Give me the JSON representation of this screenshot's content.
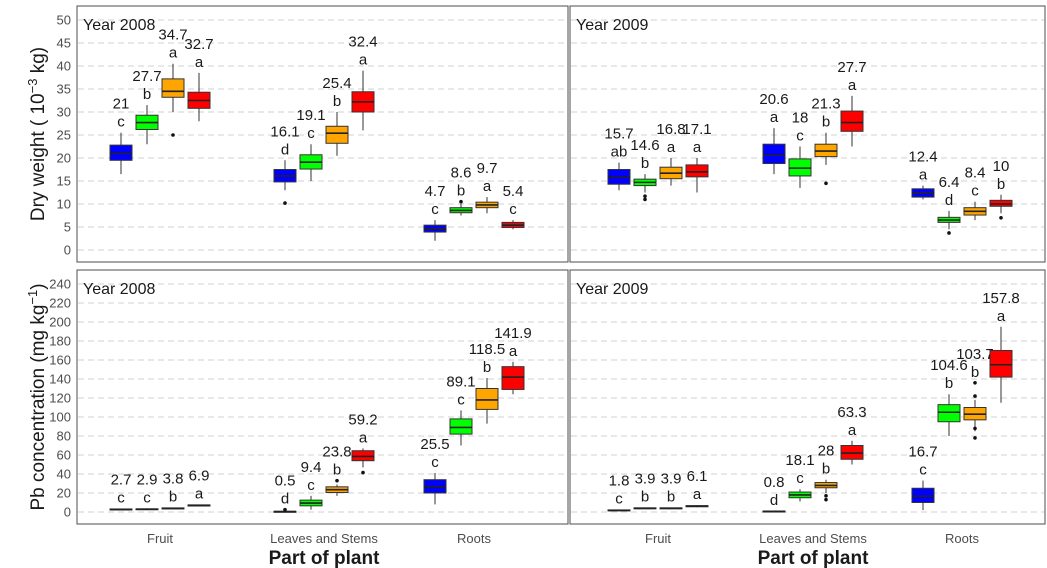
{
  "colors": {
    "blue": "#0000ff",
    "green": "#00ff00",
    "orange": "#ffa500",
    "red": "#ff0000",
    "grid": "#d0d0d0",
    "panel_border": "#4d4d4d"
  },
  "chart_data": {
    "type": "box",
    "xlabel": "Part of plant",
    "categories": [
      "Fruit",
      "Leaves and Stems",
      "Roots"
    ],
    "series_colors": [
      "blue",
      "green",
      "orange",
      "red"
    ],
    "rows": [
      {
        "ylabel_main": "Dry weight (",
        "ylabel_exp_base": "10",
        "ylabel_sup": "−3",
        "ylabel_unit": " kg)",
        "ylim": [
          0,
          50
        ],
        "yticks": [
          "0",
          "5",
          "10",
          "15",
          "20",
          "25",
          "30",
          "35",
          "40",
          "45",
          "50"
        ],
        "panels": [
          {
            "title": "Year 2008",
            "groups": [
              {
                "category": "Fruit",
                "boxes": [
                  {
                    "q1": 19.5,
                    "median": 21,
                    "q3": 22.8,
                    "wl": 16.5,
                    "wh": 25.5,
                    "outliers": [],
                    "mean_label": "21",
                    "letter": "c"
                  },
                  {
                    "q1": 26.2,
                    "median": 27.7,
                    "q3": 29.3,
                    "wl": 23.0,
                    "wh": 31.5,
                    "outliers": [],
                    "mean_label": "27.7",
                    "letter": "b"
                  },
                  {
                    "q1": 33.2,
                    "median": 34.5,
                    "q3": 37.2,
                    "wl": 30.0,
                    "wh": 40.5,
                    "outliers": [
                      25.0
                    ],
                    "mean_label": "34.7",
                    "letter": "a"
                  },
                  {
                    "q1": 30.8,
                    "median": 32.5,
                    "q3": 34.3,
                    "wl": 28.0,
                    "wh": 38.5,
                    "outliers": [],
                    "mean_label": "32.7",
                    "letter": "a"
                  }
                ]
              },
              {
                "category": "Leaves and Stems",
                "boxes": [
                  {
                    "q1": 14.8,
                    "median": 16.1,
                    "q3": 17.5,
                    "wl": 13.0,
                    "wh": 19.5,
                    "outliers": [
                      10.2
                    ],
                    "mean_label": "16.1",
                    "letter": "d"
                  },
                  {
                    "q1": 17.6,
                    "median": 19.1,
                    "q3": 20.7,
                    "wl": 15.0,
                    "wh": 23.0,
                    "outliers": [],
                    "mean_label": "19.1",
                    "letter": "c"
                  },
                  {
                    "q1": 23.2,
                    "median": 25.4,
                    "q3": 26.9,
                    "wl": 20.5,
                    "wh": 30.0,
                    "outliers": [],
                    "mean_label": "25.4",
                    "letter": "b"
                  },
                  {
                    "q1": 30.0,
                    "median": 32.2,
                    "q3": 34.4,
                    "wl": 26.0,
                    "wh": 39.0,
                    "outliers": [],
                    "mean_label": "32.4",
                    "letter": "a"
                  }
                ]
              },
              {
                "category": "Roots",
                "boxes": [
                  {
                    "q1": 3.9,
                    "median": 4.6,
                    "q3": 5.4,
                    "wl": 2.0,
                    "wh": 6.5,
                    "outliers": [],
                    "mean_label": "4.7",
                    "letter": "c"
                  },
                  {
                    "q1": 8.1,
                    "median": 8.6,
                    "q3": 9.2,
                    "wl": 7.5,
                    "wh": 10.0,
                    "outliers": [
                      10.5
                    ],
                    "mean_label": "8.6",
                    "letter": "b"
                  },
                  {
                    "q1": 9.2,
                    "median": 9.8,
                    "q3": 10.4,
                    "wl": 8.0,
                    "wh": 11.5,
                    "outliers": [],
                    "mean_label": "9.7",
                    "letter": "a"
                  },
                  {
                    "q1": 4.9,
                    "median": 5.4,
                    "q3": 6.0,
                    "wl": 4.5,
                    "wh": 6.5,
                    "outliers": [],
                    "mean_label": "5.4",
                    "letter": "c"
                  }
                ]
              }
            ]
          },
          {
            "title": "Year 2009",
            "groups": [
              {
                "category": "Fruit",
                "boxes": [
                  {
                    "q1": 14.3,
                    "median": 15.8,
                    "q3": 17.5,
                    "wl": 13.0,
                    "wh": 19.0,
                    "outliers": [],
                    "mean_label": "15.7",
                    "letter": "ab"
                  },
                  {
                    "q1": 14.0,
                    "median": 14.7,
                    "q3": 15.4,
                    "wl": 12.5,
                    "wh": 16.5,
                    "outliers": [
                      11.7,
                      11.0
                    ],
                    "mean_label": "14.6",
                    "letter": "b"
                  },
                  {
                    "q1": 15.5,
                    "median": 16.7,
                    "q3": 18.0,
                    "wl": 14.0,
                    "wh": 20.0,
                    "outliers": [],
                    "mean_label": "16.8",
                    "letter": "a"
                  },
                  {
                    "q1": 15.9,
                    "median": 17.0,
                    "q3": 18.5,
                    "wl": 12.5,
                    "wh": 20.0,
                    "outliers": [],
                    "mean_label": "17.1",
                    "letter": "a"
                  }
                ]
              },
              {
                "category": "Leaves and Stems",
                "boxes": [
                  {
                    "q1": 18.8,
                    "median": 20.6,
                    "q3": 23.0,
                    "wl": 16.5,
                    "wh": 26.5,
                    "outliers": [],
                    "mean_label": "20.6",
                    "letter": "a"
                  },
                  {
                    "q1": 16.1,
                    "median": 17.8,
                    "q3": 19.8,
                    "wl": 13.5,
                    "wh": 22.5,
                    "outliers": [],
                    "mean_label": "18",
                    "letter": "c"
                  },
                  {
                    "q1": 20.3,
                    "median": 21.5,
                    "q3": 23.0,
                    "wl": 18.5,
                    "wh": 25.5,
                    "outliers": [
                      14.5
                    ],
                    "mean_label": "21.3",
                    "letter": "b"
                  },
                  {
                    "q1": 25.8,
                    "median": 27.7,
                    "q3": 30.2,
                    "wl": 22.5,
                    "wh": 33.5,
                    "outliers": [],
                    "mean_label": "27.7",
                    "letter": "a"
                  }
                ]
              },
              {
                "category": "Roots",
                "boxes": [
                  {
                    "q1": 11.5,
                    "median": 12.4,
                    "q3": 13.3,
                    "wl": 11.0,
                    "wh": 14.0,
                    "outliers": [],
                    "mean_label": "12.4",
                    "letter": "a"
                  },
                  {
                    "q1": 6.0,
                    "median": 6.5,
                    "q3": 7.1,
                    "wl": 4.5,
                    "wh": 8.5,
                    "outliers": [
                      3.7
                    ],
                    "mean_label": "6.4",
                    "letter": "d"
                  },
                  {
                    "q1": 7.6,
                    "median": 8.4,
                    "q3": 9.2,
                    "wl": 6.5,
                    "wh": 10.5,
                    "outliers": [],
                    "mean_label": "8.4",
                    "letter": "c"
                  },
                  {
                    "q1": 9.5,
                    "median": 10.0,
                    "q3": 10.8,
                    "wl": 8.0,
                    "wh": 12.0,
                    "outliers": [
                      7.0
                    ],
                    "mean_label": "10",
                    "letter": "b"
                  }
                ]
              }
            ]
          }
        ]
      },
      {
        "ylabel_main": "Pb concentration (mg  kg",
        "ylabel_exp_base": "",
        "ylabel_sup": "−1",
        "ylabel_unit": ")",
        "ylim": [
          0,
          240
        ],
        "yticks": [
          "0",
          "20",
          "40",
          "60",
          "80",
          "100",
          "120",
          "140",
          "160",
          "180",
          "200",
          "220",
          "240"
        ],
        "panels": [
          {
            "title": "Year 2008",
            "groups": [
              {
                "category": "Fruit",
                "boxes": [
                  {
                    "q1": 2.2,
                    "median": 2.7,
                    "q3": 3.2,
                    "wl": 1.8,
                    "wh": 3.5,
                    "outliers": [],
                    "mean_label": "2.7",
                    "letter": "c"
                  },
                  {
                    "q1": 2.4,
                    "median": 2.9,
                    "q3": 3.4,
                    "wl": 2.0,
                    "wh": 3.8,
                    "outliers": [],
                    "mean_label": "2.9",
                    "letter": "c"
                  },
                  {
                    "q1": 3.3,
                    "median": 3.8,
                    "q3": 4.3,
                    "wl": 3.0,
                    "wh": 4.6,
                    "outliers": [],
                    "mean_label": "3.8",
                    "letter": "b"
                  },
                  {
                    "q1": 6.3,
                    "median": 6.9,
                    "q3": 7.5,
                    "wl": 6.0,
                    "wh": 7.8,
                    "outliers": [],
                    "mean_label": "6.9",
                    "letter": "a"
                  }
                ]
              },
              {
                "category": "Leaves and Stems",
                "boxes": [
                  {
                    "q1": 0.3,
                    "median": 0.5,
                    "q3": 0.7,
                    "wl": 0.1,
                    "wh": 0.9,
                    "outliers": [
                      2.5
                    ],
                    "mean_label": "0.5",
                    "letter": "d"
                  },
                  {
                    "q1": 6.5,
                    "median": 9.4,
                    "q3": 12.5,
                    "wl": 2.5,
                    "wh": 17.0,
                    "outliers": [],
                    "mean_label": "9.4",
                    "letter": "c"
                  },
                  {
                    "q1": 20.5,
                    "median": 23.5,
                    "q3": 26.5,
                    "wl": 17.0,
                    "wh": 29.0,
                    "outliers": [
                      33.0
                    ],
                    "mean_label": "23.8",
                    "letter": "b"
                  },
                  {
                    "q1": 54.0,
                    "median": 58.5,
                    "q3": 64.5,
                    "wl": 47.0,
                    "wh": 67.0,
                    "outliers": [
                      41.5
                    ],
                    "mean_label": "59.2",
                    "letter": "a"
                  }
                ]
              },
              {
                "category": "Roots",
                "boxes": [
                  {
                    "q1": 20.0,
                    "median": 26.5,
                    "q3": 34.0,
                    "wl": 8.0,
                    "wh": 41.0,
                    "outliers": [],
                    "mean_label": "25.5",
                    "letter": "c"
                  },
                  {
                    "q1": 82.0,
                    "median": 89.0,
                    "q3": 98.0,
                    "wl": 70.0,
                    "wh": 107.0,
                    "outliers": [],
                    "mean_label": "89.1",
                    "letter": "c"
                  },
                  {
                    "q1": 108.0,
                    "median": 118.0,
                    "q3": 130.0,
                    "wl": 93.0,
                    "wh": 141.0,
                    "outliers": [],
                    "mean_label": "118.5",
                    "letter": "b"
                  },
                  {
                    "q1": 129.0,
                    "median": 142.0,
                    "q3": 153.0,
                    "wl": 124.0,
                    "wh": 158.0,
                    "outliers": [],
                    "mean_label": "141.9",
                    "letter": "a"
                  }
                ]
              }
            ]
          },
          {
            "title": "Year 2009",
            "groups": [
              {
                "category": "Fruit",
                "boxes": [
                  {
                    "q1": 1.4,
                    "median": 1.8,
                    "q3": 2.2,
                    "wl": 1.0,
                    "wh": 2.5,
                    "outliers": [],
                    "mean_label": "1.8",
                    "letter": "c"
                  },
                  {
                    "q1": 3.4,
                    "median": 3.9,
                    "q3": 4.4,
                    "wl": 3.0,
                    "wh": 4.7,
                    "outliers": [],
                    "mean_label": "3.9",
                    "letter": "b"
                  },
                  {
                    "q1": 3.4,
                    "median": 3.9,
                    "q3": 4.4,
                    "wl": 3.0,
                    "wh": 4.7,
                    "outliers": [],
                    "mean_label": "3.9",
                    "letter": "b"
                  },
                  {
                    "q1": 5.5,
                    "median": 6.1,
                    "q3": 6.7,
                    "wl": 5.0,
                    "wh": 7.2,
                    "outliers": [],
                    "mean_label": "6.1",
                    "letter": "a"
                  }
                ]
              },
              {
                "category": "Leaves and Stems",
                "boxes": [
                  {
                    "q1": 0.6,
                    "median": 0.8,
                    "q3": 1.0,
                    "wl": 0.4,
                    "wh": 1.2,
                    "outliers": [],
                    "mean_label": "0.8",
                    "letter": "d"
                  },
                  {
                    "q1": 15.0,
                    "median": 18.0,
                    "q3": 21.0,
                    "wl": 11.0,
                    "wh": 24.0,
                    "outliers": [],
                    "mean_label": "18.1",
                    "letter": "c"
                  },
                  {
                    "q1": 25.5,
                    "median": 28.0,
                    "q3": 31.0,
                    "wl": 20.0,
                    "wh": 34.0,
                    "outliers": [
                      17.0,
                      13.0
                    ],
                    "mean_label": "28",
                    "letter": "b"
                  },
                  {
                    "q1": 55.5,
                    "median": 62.0,
                    "q3": 70.0,
                    "wl": 50.0,
                    "wh": 75.0,
                    "outliers": [],
                    "mean_label": "63.3",
                    "letter": "a"
                  }
                ]
              },
              {
                "category": "Roots",
                "boxes": [
                  {
                    "q1": 10.0,
                    "median": 16.5,
                    "q3": 25.0,
                    "wl": 2.0,
                    "wh": 33.0,
                    "outliers": [],
                    "mean_label": "16.7",
                    "letter": "c"
                  },
                  {
                    "q1": 95.0,
                    "median": 105.0,
                    "q3": 113.0,
                    "wl": 80.0,
                    "wh": 124.0,
                    "outliers": [],
                    "mean_label": "104.6",
                    "letter": "b"
                  },
                  {
                    "q1": 97.0,
                    "median": 103.0,
                    "q3": 110.0,
                    "wl": 85.0,
                    "wh": 118.0,
                    "outliers": [
                      136.0,
                      122.0,
                      88.0,
                      78.0
                    ],
                    "mean_label": "103.7",
                    "letter": "b"
                  },
                  {
                    "q1": 142.0,
                    "median": 155.0,
                    "q3": 170.0,
                    "wl": 115.0,
                    "wh": 195.0,
                    "outliers": [],
                    "mean_label": "157.8",
                    "letter": "a"
                  }
                ]
              }
            ]
          }
        ]
      }
    ]
  }
}
